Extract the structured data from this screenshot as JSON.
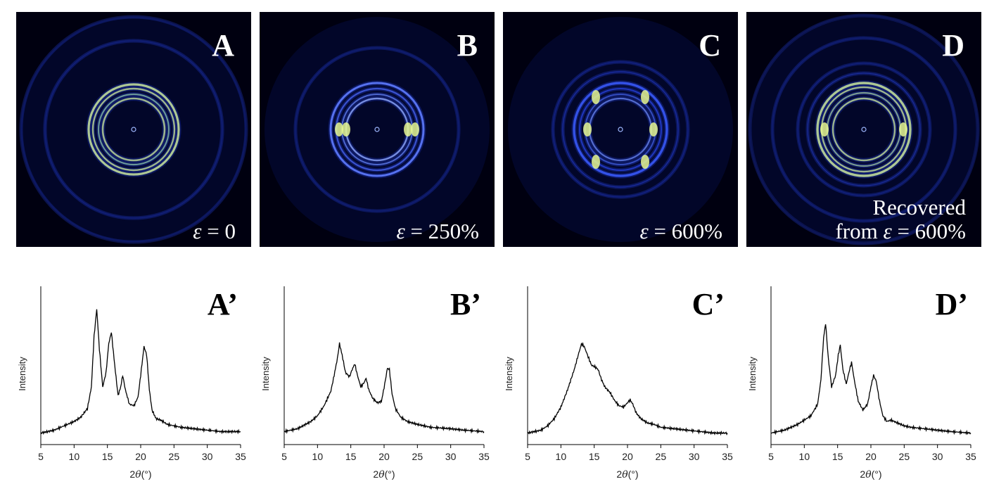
{
  "panels": [
    {
      "letter": "A",
      "strain_prefix": "ε",
      "strain_value": "= 0",
      "recovered_label": ""
    },
    {
      "letter": "B",
      "strain_prefix": "ε",
      "strain_value": "= 250%",
      "recovered_label": ""
    },
    {
      "letter": "C",
      "strain_prefix": "ε",
      "strain_value": "= 600%",
      "recovered_label": ""
    },
    {
      "letter": "D",
      "strain_prefix": "ε",
      "strain_value": "= 600%",
      "recovered_label": "Recovered",
      "recovered_from": "from"
    }
  ],
  "colors": {
    "saxs_background": "#000010",
    "ring_yellow": "#d8f070",
    "ring_blue": "#2a4cff",
    "curve": "#000000"
  },
  "chart_data": [
    {
      "type": "line",
      "label": "A’",
      "ylabel": "Intensity",
      "xlabel_prefix": "2",
      "xlabel_theta": "θ",
      "xlabel_unit": "(°)",
      "xlim": [
        5,
        35
      ],
      "ylim": [
        0,
        1
      ],
      "xticks": [
        5,
        10,
        15,
        20,
        25,
        30,
        35
      ],
      "series": [
        {
          "x": [
            5,
            7,
            9,
            10,
            11,
            12,
            12.6,
            13.0,
            13.4,
            13.8,
            14.3,
            14.8,
            15.2,
            15.6,
            16.1,
            16.6,
            17.0,
            17.3,
            17.7,
            18.3,
            19.0,
            19.6,
            20.1,
            20.5,
            20.9,
            21.3,
            21.7,
            22.3,
            23.0,
            24.0,
            25,
            26,
            28,
            30,
            32,
            35
          ],
          "y": [
            0.08,
            0.1,
            0.14,
            0.16,
            0.19,
            0.25,
            0.4,
            0.75,
            0.94,
            0.66,
            0.4,
            0.5,
            0.7,
            0.78,
            0.55,
            0.34,
            0.4,
            0.48,
            0.38,
            0.28,
            0.27,
            0.33,
            0.52,
            0.68,
            0.62,
            0.38,
            0.24,
            0.18,
            0.17,
            0.14,
            0.13,
            0.12,
            0.11,
            0.1,
            0.09,
            0.09
          ]
        }
      ]
    },
    {
      "type": "line",
      "label": "B’",
      "ylabel": "Intensity",
      "xlabel_prefix": "2",
      "xlabel_theta": "θ",
      "xlabel_unit": "(°)",
      "xlim": [
        5,
        35
      ],
      "ylim": [
        0,
        1
      ],
      "xticks": [
        5,
        10,
        15,
        20,
        25,
        30,
        35
      ],
      "series": [
        {
          "x": [
            5,
            7,
            9,
            10,
            11,
            12,
            12.5,
            13.0,
            13.3,
            13.7,
            14.2,
            14.8,
            15.2,
            15.6,
            16.0,
            16.5,
            17.0,
            17.3,
            17.7,
            18.3,
            19.0,
            19.6,
            20.1,
            20.5,
            20.8,
            21.2,
            21.7,
            22.5,
            23.5,
            25,
            27,
            30,
            32,
            35
          ],
          "y": [
            0.09,
            0.11,
            0.16,
            0.2,
            0.27,
            0.37,
            0.48,
            0.6,
            0.7,
            0.62,
            0.5,
            0.47,
            0.52,
            0.56,
            0.48,
            0.4,
            0.43,
            0.46,
            0.38,
            0.32,
            0.29,
            0.3,
            0.42,
            0.53,
            0.52,
            0.35,
            0.25,
            0.19,
            0.16,
            0.14,
            0.12,
            0.11,
            0.1,
            0.09
          ]
        }
      ]
    },
    {
      "type": "line",
      "label": "C’",
      "ylabel": "Intensity",
      "xlabel_prefix": "2",
      "xlabel_theta": "θ",
      "xlabel_unit": "(°)",
      "xlim": [
        5,
        35
      ],
      "ylim": [
        0,
        1
      ],
      "xticks": [
        5,
        10,
        15,
        20,
        25,
        30,
        35
      ],
      "series": [
        {
          "x": [
            5,
            7,
            8,
            9,
            10,
            11,
            12,
            12.6,
            13.1,
            13.5,
            14.0,
            14.6,
            15.1,
            15.6,
            16.1,
            16.6,
            17.0,
            17.4,
            18.0,
            18.7,
            19.4,
            20.0,
            20.4,
            20.8,
            21.3,
            22.0,
            23.0,
            24.0,
            25,
            27,
            29,
            31,
            33,
            35
          ],
          "y": [
            0.08,
            0.1,
            0.13,
            0.18,
            0.26,
            0.38,
            0.52,
            0.62,
            0.7,
            0.68,
            0.62,
            0.55,
            0.54,
            0.52,
            0.45,
            0.4,
            0.38,
            0.36,
            0.31,
            0.27,
            0.26,
            0.29,
            0.31,
            0.28,
            0.22,
            0.18,
            0.15,
            0.14,
            0.12,
            0.11,
            0.1,
            0.09,
            0.08,
            0.08
          ]
        }
      ]
    },
    {
      "type": "line",
      "label": "D’",
      "ylabel": "Intensity",
      "xlabel_prefix": "2",
      "xlabel_theta": "θ",
      "xlabel_unit": "(°)",
      "xlim": [
        5,
        35
      ],
      "ylim": [
        0,
        1
      ],
      "xticks": [
        5,
        10,
        15,
        20,
        25,
        30,
        35
      ],
      "series": [
        {
          "x": [
            5,
            7,
            9,
            10,
            11,
            12,
            12.5,
            12.9,
            13.2,
            13.6,
            14.1,
            14.7,
            15.1,
            15.4,
            15.8,
            16.3,
            16.8,
            17.1,
            17.5,
            18.1,
            18.8,
            19.5,
            20.0,
            20.4,
            20.8,
            21.3,
            21.8,
            22.4,
            23.0,
            24.0,
            25,
            26,
            28,
            30,
            32,
            35
          ],
          "y": [
            0.08,
            0.1,
            0.14,
            0.17,
            0.2,
            0.28,
            0.45,
            0.74,
            0.84,
            0.6,
            0.4,
            0.48,
            0.62,
            0.69,
            0.52,
            0.42,
            0.52,
            0.57,
            0.45,
            0.3,
            0.24,
            0.28,
            0.4,
            0.48,
            0.44,
            0.3,
            0.2,
            0.16,
            0.17,
            0.15,
            0.13,
            0.12,
            0.11,
            0.1,
            0.09,
            0.08
          ]
        }
      ]
    }
  ]
}
